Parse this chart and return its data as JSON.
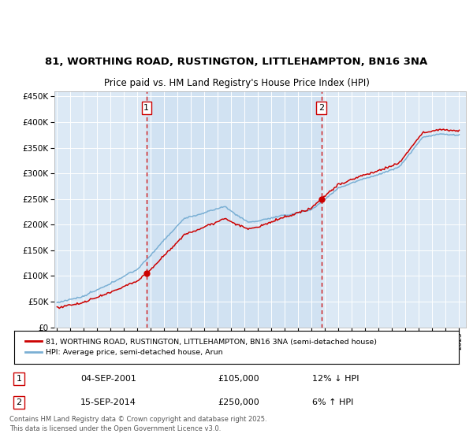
{
  "title_line1": "81, WORTHING ROAD, RUSTINGTON, LITTLEHAMPTON, BN16 3NA",
  "title_line2": "Price paid vs. HM Land Registry's House Price Index (HPI)",
  "legend_label_red": "81, WORTHING ROAD, RUSTINGTON, LITTLEHAMPTON, BN16 3NA (semi-detached house)",
  "legend_label_blue": "HPI: Average price, semi-detached house, Arun",
  "footer": "Contains HM Land Registry data © Crown copyright and database right 2025.\nThis data is licensed under the Open Government Licence v3.0.",
  "sale1_label": "1",
  "sale1_date": "04-SEP-2001",
  "sale1_price": "£105,000",
  "sale1_hpi": "12% ↓ HPI",
  "sale1_year": 2001.67,
  "sale1_value": 105000,
  "sale2_label": "2",
  "sale2_date": "15-SEP-2014",
  "sale2_price": "£250,000",
  "sale2_hpi": "6% ↑ HPI",
  "sale2_year": 2014.71,
  "sale2_value": 250000,
  "bg_color": "#dce9f5",
  "plot_bg_color": "#dce9f5",
  "between_fill_color": "#c8ddf0",
  "red_color": "#cc0000",
  "blue_color": "#7aafd4",
  "vline_color": "#cc0000",
  "grid_color": "#ffffff",
  "ylim_max": 460000,
  "ylim_min": 0,
  "xlim_min": 1994.8,
  "xlim_max": 2025.5
}
